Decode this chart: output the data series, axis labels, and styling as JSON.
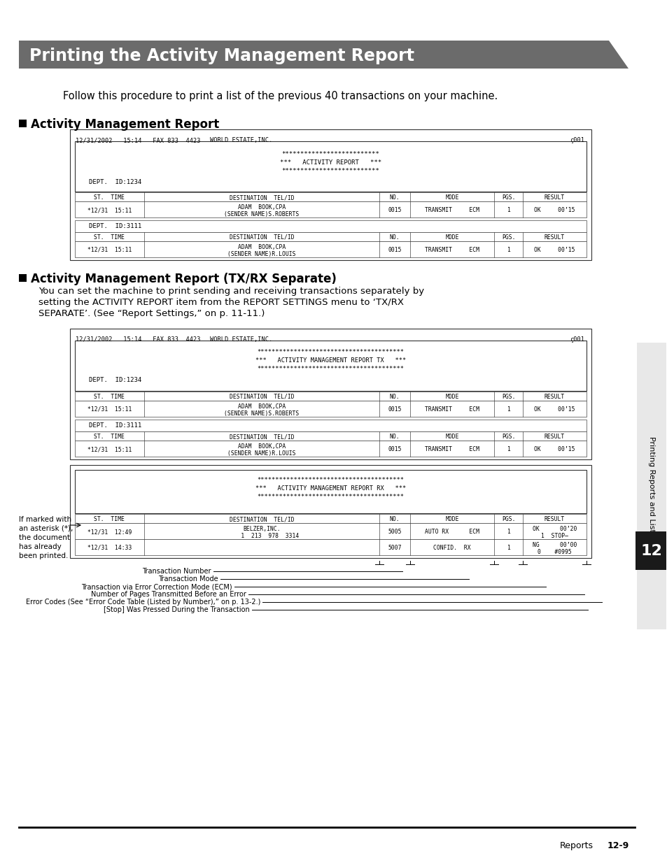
{
  "title": "Printing the Activity Management Report",
  "intro_text": "Follow this procedure to print a list of the previous 40 transactions on your machine.",
  "section1_heading": "Activity Management Report",
  "section2_heading": "Activity Management Report (TX/RX Separate)",
  "section2_body1": "You can set the machine to print sending and receiving transactions separately by",
  "section2_body2": "setting the ACTIVITY REPORT item from the REPORT SETTINGS menu to ‘TX/RX",
  "section2_body3": "SEPARATE’. (See “Report Settings,” on p. 11-11.)",
  "fax_header_date": "12/31/2002   15:14   FAX 833  4423",
  "fax_header_company": "WORLD ESTATE,INC.",
  "fax_header_num": "ç001",
  "report1_stars1": "**************************",
  "report1_title_line": "***   ACTIVITY REPORT   ***",
  "report1_stars2": "**************************",
  "report2_stars1": "****************************************",
  "report2_title_tx": "***   ACTIVITY MANAGEMENT REPORT TX   ***",
  "report2_stars2": "****************************************",
  "report3_stars1": "****************************************",
  "report3_title_rx": "***   ACTIVITY MANAGEMENT REPORT RX   ***",
  "report3_stars2": "****************************************",
  "dept1": "DEPT.  ID:1234",
  "dept2": "DEPT.  ID:3111",
  "table_headers": [
    "ST.  TIME",
    "DESTINATION  TEL/ID",
    "NO.",
    "MODE",
    "PGS.",
    "RESULT"
  ],
  "col_splits": [
    0.0,
    0.135,
    0.595,
    0.655,
    0.82,
    0.875,
    1.0
  ],
  "row1": [
    "*12/31  15:11",
    "ADAM  BOOK,CPA\n(SENDER NAME)S.ROBERTS",
    "0015",
    "TRANSMIT     ECM",
    "1",
    "OK     00’15"
  ],
  "row2": [
    "*12/31  15:11",
    "ADAM  BOOK,CPA\n(SENDER NAME)R.LOUIS",
    "0015",
    "TRANSMIT     ECM",
    "1",
    "OK     00’15"
  ],
  "row3": [
    "*12/31  12:49",
    "BELZER,INC.\n     1  213  978  3314",
    "5005",
    "AUTO RX      ECM",
    "1",
    "OK      00’20\n1  STOP—"
  ],
  "row4": [
    "*12/31  14:33",
    "",
    "5007",
    "CONFID.  RX",
    "1",
    "NG      00’00\n0    #0995"
  ],
  "footnote": [
    "If marked with",
    "an asterisk (*),",
    "the document",
    "has already",
    "been printed."
  ],
  "callout_labels": [
    "Transaction Number",
    "Transaction Mode",
    "Transaction via Error Correction Mode (ECM)",
    "Number of Pages Transmitted Before an Error",
    "Error Codes (See “Error Code Table (Listed by Number),” on p. 13-2.)",
    "[Stop] Was Pressed During the Transaction"
  ],
  "sidebar_text": "Printing Reports and Lists",
  "page_tab": "12",
  "page_footer": "Reports",
  "page_num": "12-9"
}
